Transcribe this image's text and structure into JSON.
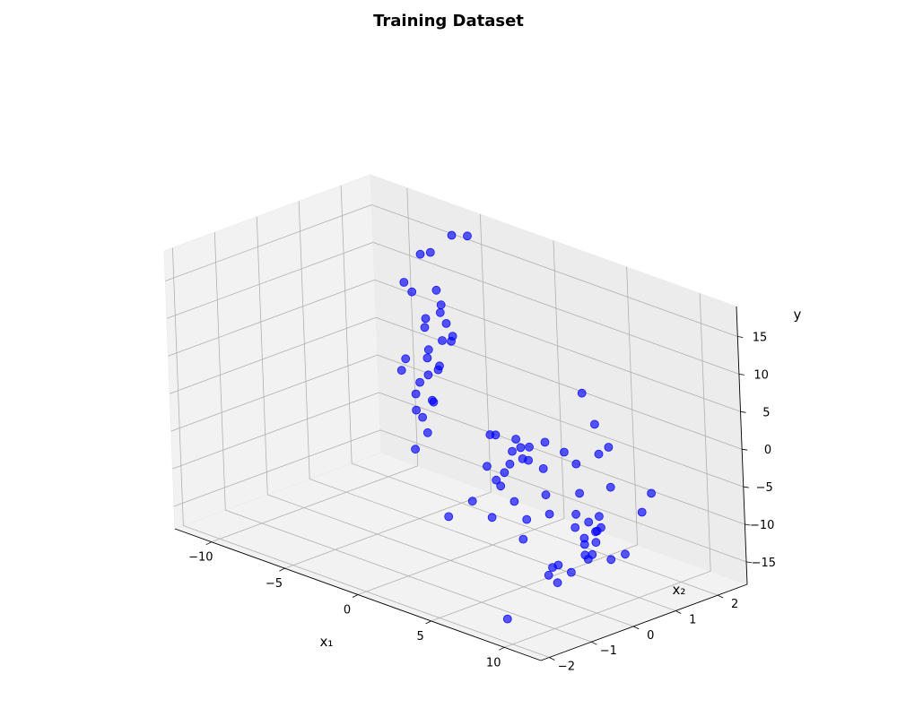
{
  "chart_data": {
    "type": "scatter",
    "title": "Training Dataset",
    "xlabel": "x₁",
    "ylabel": "x₂",
    "zlabel": "y",
    "xlim": [
      -12.5,
      12.5
    ],
    "ylim": [
      -2.2,
      2.7
    ],
    "zlim": [
      -18,
      19
    ],
    "xticks": [
      -10,
      -5,
      0,
      5,
      10
    ],
    "xtick_labels": [
      "−10",
      "−5",
      "0",
      "5",
      "10"
    ],
    "yticks": [
      -2,
      -1,
      0,
      1,
      2
    ],
    "ytick_labels": [
      "−2",
      "−1",
      "0",
      "1",
      "2"
    ],
    "zticks": [
      -15,
      -10,
      -5,
      0,
      5,
      10,
      15
    ],
    "ztick_labels": [
      "−15",
      "−10",
      "−5",
      "0",
      "5",
      "10",
      "15"
    ],
    "grid": true,
    "marker_color": "#0000ff",
    "points": [
      [
        -8.4,
        2.0,
        9
      ],
      [
        -6.9,
        1.9,
        14
      ],
      [
        -5.3,
        1.6,
        16
      ],
      [
        -2.7,
        1.6,
        20
      ],
      [
        -2.6,
        1.2,
        21
      ],
      [
        -5.9,
        2.0,
        3
      ],
      [
        -4.1,
        1.6,
        5
      ],
      [
        -3.8,
        1.4,
        8
      ],
      [
        -6.4,
        1.8,
        6
      ],
      [
        -5.0,
        1.7,
        9
      ],
      [
        -4.4,
        1.4,
        12
      ],
      [
        -3.1,
        1.3,
        7
      ],
      [
        -4.8,
        1.3,
        4
      ],
      [
        -5.5,
        1.5,
        2
      ],
      [
        -7.6,
        1.7,
        0
      ],
      [
        -6.1,
        1.4,
        -3
      ],
      [
        -4.6,
        1.2,
        1
      ],
      [
        -3.3,
        1.0,
        3
      ],
      [
        -4.0,
        1.1,
        -2
      ],
      [
        -5.1,
        1.2,
        -5
      ],
      [
        -6.7,
        1.6,
        -6
      ],
      [
        -4.2,
        1.0,
        -6
      ],
      [
        -2.9,
        0.9,
        4
      ],
      [
        -4.9,
        1.1,
        0
      ],
      [
        -5.8,
        1.3,
        11
      ],
      [
        -3.6,
        1.2,
        10
      ],
      [
        -3.5,
        0.9,
        -1
      ],
      [
        -4.5,
        0.8,
        -8
      ],
      [
        -8.8,
        2.0,
        -3
      ],
      [
        -5.6,
        1.5,
        6
      ],
      [
        0.5,
        1.0,
        -3
      ],
      [
        1.6,
        1.1,
        -3
      ],
      [
        2.2,
        1.0,
        -3.5
      ],
      [
        2.8,
        1.0,
        -3
      ],
      [
        3.6,
        1.1,
        -2
      ],
      [
        3.3,
        0.8,
        -4
      ],
      [
        1.9,
        0.9,
        -4
      ],
      [
        2.6,
        0.9,
        -4.5
      ],
      [
        2.3,
        0.7,
        -5
      ],
      [
        1.9,
        0.5,
        -7
      ],
      [
        1.0,
        0.6,
        -6
      ],
      [
        1.9,
        0.6,
        -8
      ],
      [
        3.1,
        0.5,
        -9
      ],
      [
        2.4,
        0.2,
        -11
      ],
      [
        4.5,
        0.3,
        -10
      ],
      [
        5.0,
        0.6,
        -7
      ],
      [
        4.6,
        0.7,
        -4
      ],
      [
        5.2,
        1.0,
        -2
      ],
      [
        6.0,
        1.0,
        -3
      ],
      [
        5.5,
        0.5,
        -9
      ],
      [
        7.3,
        1.1,
        -1
      ],
      [
        6.5,
        1.3,
        2
      ],
      [
        7.7,
        1.2,
        0
      ],
      [
        6.0,
        1.2,
        6
      ],
      [
        4.8,
        0.1,
        -12
      ],
      [
        1.0,
        0.7,
        -2
      ],
      [
        7.6,
        0.7,
        -9
      ],
      [
        -0.6,
        0.2,
        -13
      ],
      [
        0.2,
        0.5,
        -11
      ],
      [
        2.2,
        0.6,
        -6
      ],
      [
        10.1,
        0.4,
        -2
      ],
      [
        10.3,
        -0.4,
        -1
      ],
      [
        10.0,
        -0.4,
        -4
      ],
      [
        10.5,
        -0.6,
        -5
      ],
      [
        11.0,
        -0.2,
        -4
      ],
      [
        11.4,
        -0.3,
        -5
      ],
      [
        11.1,
        -0.6,
        -6
      ],
      [
        11.6,
        -0.5,
        -5
      ],
      [
        11.7,
        -0.8,
        -6
      ],
      [
        11.9,
        -0.6,
        -6
      ],
      [
        12.0,
        -0.9,
        -7
      ],
      [
        12.2,
        -0.8,
        -7
      ],
      [
        12.5,
        -1.0,
        -7
      ],
      [
        11.0,
        -0.9,
        -10
      ],
      [
        11.3,
        -1.3,
        -8
      ],
      [
        10.6,
        -1.2,
        -9
      ],
      [
        11.2,
        -1.5,
        -9
      ],
      [
        11.5,
        -1.4,
        -10
      ],
      [
        12.6,
        -0.5,
        -8
      ],
      [
        13.3,
        -0.4,
        -7
      ],
      [
        13.5,
        0.2,
        0
      ],
      [
        12.8,
        0.2,
        -3
      ],
      [
        12.3,
        -0.7,
        -4
      ],
      [
        10.3,
        -2.2,
        -14
      ]
    ]
  }
}
